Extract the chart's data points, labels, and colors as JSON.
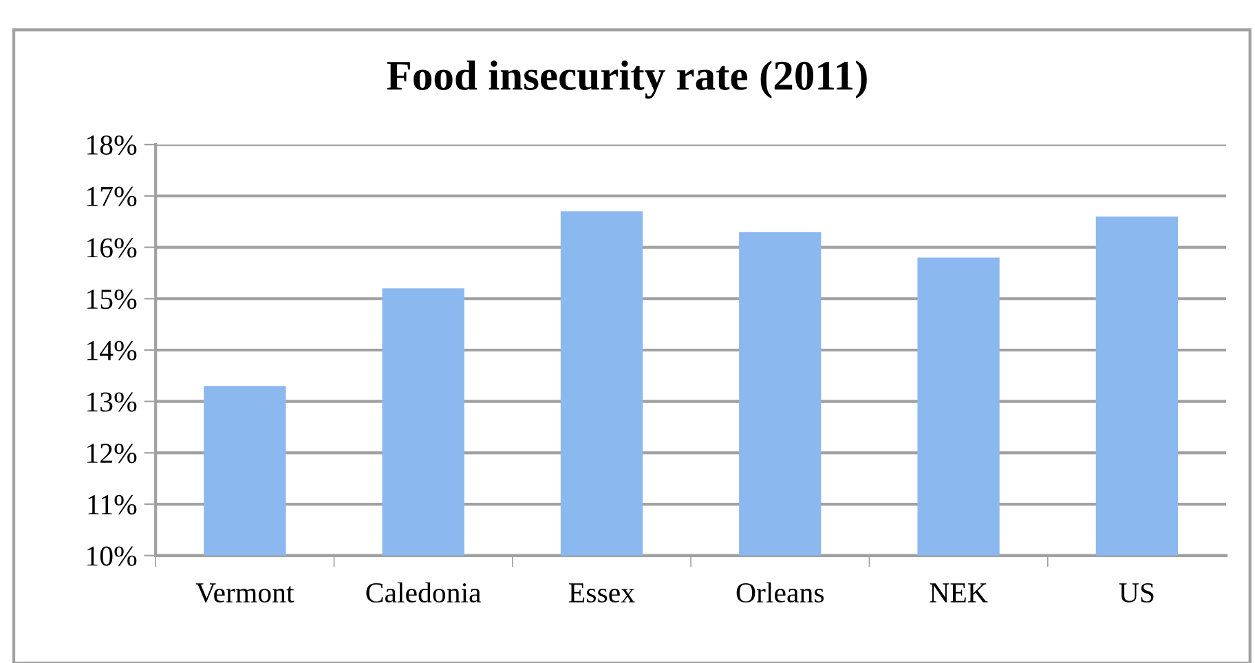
{
  "chart_data": {
    "type": "bar",
    "title": "Food insecurity rate (2011)",
    "categories": [
      "Vermont",
      "Caledonia",
      "Essex",
      "Orleans",
      "NEK",
      "US"
    ],
    "values": [
      13.3,
      15.2,
      16.7,
      16.3,
      15.8,
      16.6
    ],
    "color": "#8cb8f0",
    "ylim": [
      10,
      18
    ],
    "yticks": [
      {
        "value": 10,
        "label": "10%"
      },
      {
        "value": 11,
        "label": "11%"
      },
      {
        "value": 12,
        "label": "12%"
      },
      {
        "value": 13,
        "label": "13%"
      },
      {
        "value": 14,
        "label": "14%"
      },
      {
        "value": 15,
        "label": "15%"
      },
      {
        "value": 16,
        "label": "16%"
      },
      {
        "value": 17,
        "label": "17%"
      },
      {
        "value": 18,
        "label": "18%"
      }
    ],
    "grid": "y"
  }
}
